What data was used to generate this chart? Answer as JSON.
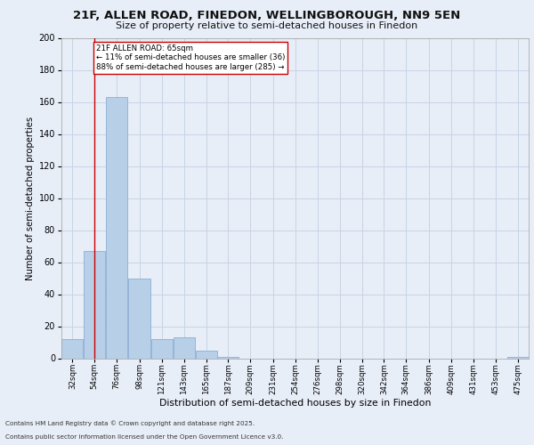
{
  "title_line1": "21F, ALLEN ROAD, FINEDON, WELLINGBOROUGH, NN9 5EN",
  "title_line2": "Size of property relative to semi-detached houses in Finedon",
  "xlabel": "Distribution of semi-detached houses by size in Finedon",
  "ylabel": "Number of semi-detached properties",
  "bin_edges": [
    32,
    54,
    76,
    98,
    121,
    143,
    165,
    187,
    209,
    231,
    254,
    276,
    298,
    320,
    342,
    364,
    386,
    409,
    431,
    453,
    475,
    497
  ],
  "bar_values": [
    12,
    67,
    163,
    50,
    12,
    13,
    5,
    1,
    0,
    0,
    0,
    0,
    0,
    0,
    0,
    0,
    0,
    0,
    0,
    0,
    1
  ],
  "bar_color": "#b8cfe8",
  "bar_edge_color": "#8aafd4",
  "subject_size": 65,
  "subject_label": "21F ALLEN ROAD: 65sqm",
  "pct_smaller": 11,
  "pct_larger": 88,
  "n_smaller": 36,
  "n_larger": 285,
  "annotation_box_color": "#cc0000",
  "grid_color": "#c8d4e4",
  "background_color": "#e8eef8",
  "plot_bg_color": "#e8eef8",
  "footnote1": "Contains HM Land Registry data © Crown copyright and database right 2025.",
  "footnote2": "Contains public sector information licensed under the Open Government Licence v3.0.",
  "ylim": [
    0,
    200
  ],
  "yticks": [
    0,
    20,
    40,
    60,
    80,
    100,
    120,
    140,
    160,
    180,
    200
  ],
  "tick_labels": [
    "32sqm",
    "54sqm",
    "76sqm",
    "98sqm",
    "121sqm",
    "143sqm",
    "165sqm",
    "187sqm",
    "209sqm",
    "231sqm",
    "254sqm",
    "276sqm",
    "298sqm",
    "320sqm",
    "342sqm",
    "364sqm",
    "386sqm",
    "409sqm",
    "431sqm",
    "453sqm",
    "475sqm"
  ]
}
